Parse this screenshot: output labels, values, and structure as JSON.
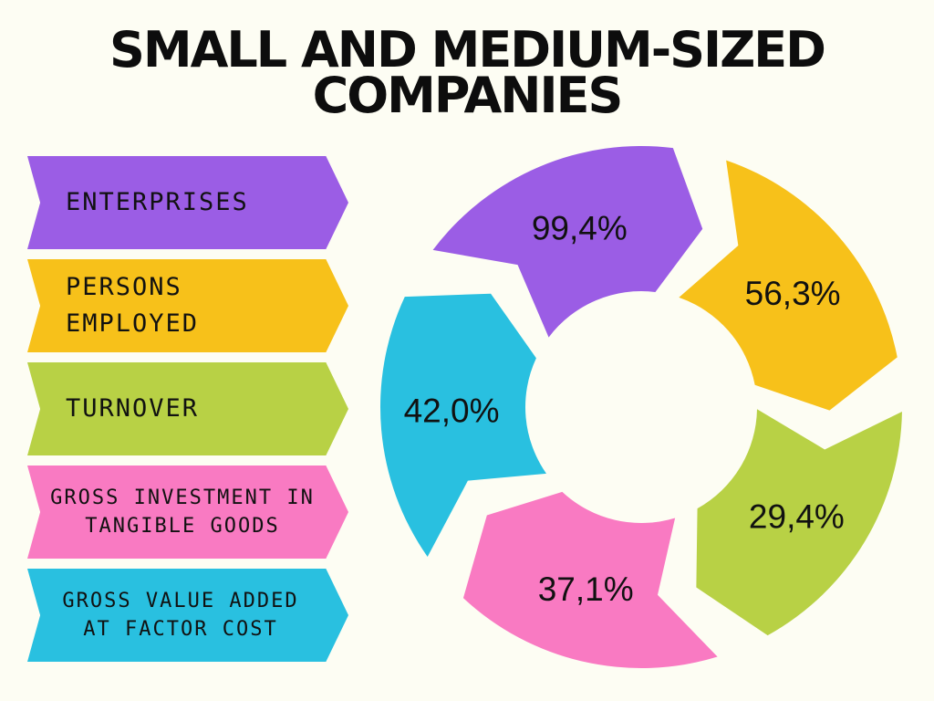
{
  "title": "SMALL AND MEDIUM-SIZED COMPANIES",
  "chart_data": {
    "type": "pie",
    "title": "SMALL AND MEDIUM-SIZED COMPANIES",
    "categories": [
      "ENTERPRISES",
      "PERSONS EMPLOYED",
      "TURNOVER",
      "GROSS INVESTMENT IN TANGIBLE GOODS",
      "GROSS VALUE ADDED AT FACTOR COST"
    ],
    "values": [
      99.4,
      56.3,
      29.4,
      37.1,
      42.0
    ],
    "value_labels": [
      "99,4%",
      "56,3%",
      "29,4%",
      "37,1%",
      "42,0%"
    ],
    "colors": [
      "#9b5de5",
      "#f7c11a",
      "#b8d145",
      "#f97ac2",
      "#29c0e0"
    ],
    "legend_position": "left"
  }
}
